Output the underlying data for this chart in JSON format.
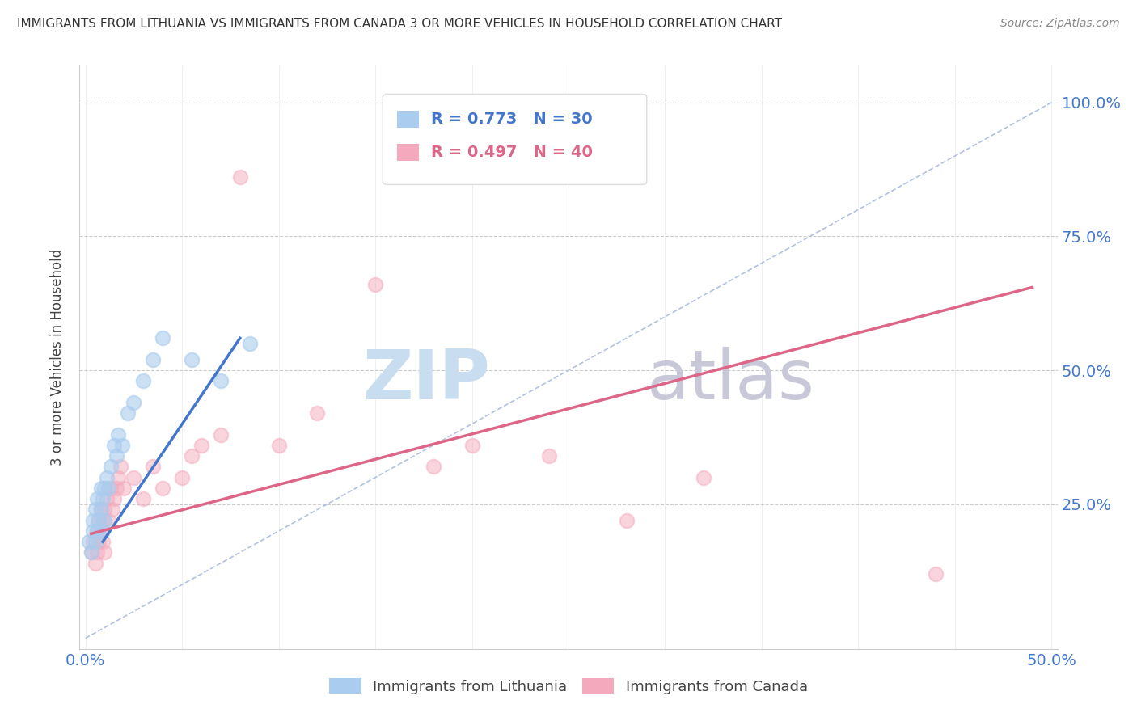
{
  "title": "IMMIGRANTS FROM LITHUANIA VS IMMIGRANTS FROM CANADA 3 OR MORE VEHICLES IN HOUSEHOLD CORRELATION CHART",
  "source": "Source: ZipAtlas.com",
  "ylabel": "3 or more Vehicles in Household",
  "legend1_label": "Immigrants from Lithuania",
  "legend2_label": "Immigrants from Canada",
  "R_blue": 0.773,
  "N_blue": 30,
  "R_pink": 0.497,
  "N_pink": 40,
  "blue_color": "#aaccee",
  "pink_color": "#f4aabc",
  "blue_line_color": "#4477cc",
  "pink_line_color": "#dd6688",
  "diag_color": "#aabbdd",
  "background_color": "#ffffff",
  "grid_color": "#cccccc",
  "title_color": "#333333",
  "axis_label_color": "#4477cc",
  "watermark_zip_color": "#c8ddf0",
  "watermark_atlas_color": "#c8c8d8",
  "xlim": [
    0.0,
    0.5
  ],
  "ylim": [
    0.0,
    1.05
  ],
  "blue_scatter_x": [
    0.002,
    0.003,
    0.004,
    0.004,
    0.005,
    0.005,
    0.006,
    0.006,
    0.007,
    0.008,
    0.008,
    0.009,
    0.009,
    0.01,
    0.01,
    0.011,
    0.012,
    0.013,
    0.015,
    0.016,
    0.017,
    0.019,
    0.022,
    0.025,
    0.03,
    0.035,
    0.04,
    0.055,
    0.07,
    0.085
  ],
  "blue_scatter_y": [
    0.18,
    0.16,
    0.2,
    0.22,
    0.18,
    0.24,
    0.2,
    0.26,
    0.22,
    0.24,
    0.28,
    0.2,
    0.26,
    0.22,
    0.28,
    0.3,
    0.28,
    0.32,
    0.36,
    0.34,
    0.38,
    0.36,
    0.42,
    0.44,
    0.48,
    0.52,
    0.56,
    0.52,
    0.48,
    0.55
  ],
  "pink_scatter_x": [
    0.003,
    0.004,
    0.005,
    0.006,
    0.006,
    0.007,
    0.007,
    0.008,
    0.008,
    0.009,
    0.009,
    0.01,
    0.01,
    0.011,
    0.012,
    0.013,
    0.014,
    0.015,
    0.016,
    0.017,
    0.018,
    0.02,
    0.025,
    0.03,
    0.035,
    0.04,
    0.05,
    0.055,
    0.06,
    0.07,
    0.08,
    0.1,
    0.12,
    0.15,
    0.18,
    0.2,
    0.24,
    0.28,
    0.32,
    0.44
  ],
  "pink_scatter_y": [
    0.16,
    0.18,
    0.14,
    0.16,
    0.2,
    0.22,
    0.18,
    0.24,
    0.2,
    0.22,
    0.18,
    0.16,
    0.24,
    0.26,
    0.22,
    0.28,
    0.24,
    0.26,
    0.28,
    0.3,
    0.32,
    0.28,
    0.3,
    0.26,
    0.32,
    0.28,
    0.3,
    0.34,
    0.36,
    0.38,
    0.86,
    0.36,
    0.42,
    0.66,
    0.32,
    0.36,
    0.34,
    0.22,
    0.3,
    0.12
  ],
  "blue_line_x": [
    0.009,
    0.08
  ],
  "blue_line_y": [
    0.18,
    0.56
  ],
  "pink_line_x": [
    0.003,
    0.49
  ],
  "pink_line_y": [
    0.195,
    0.655
  ],
  "diag_line_x": [
    0.0,
    0.5
  ],
  "diag_line_y": [
    0.0,
    1.0
  ]
}
